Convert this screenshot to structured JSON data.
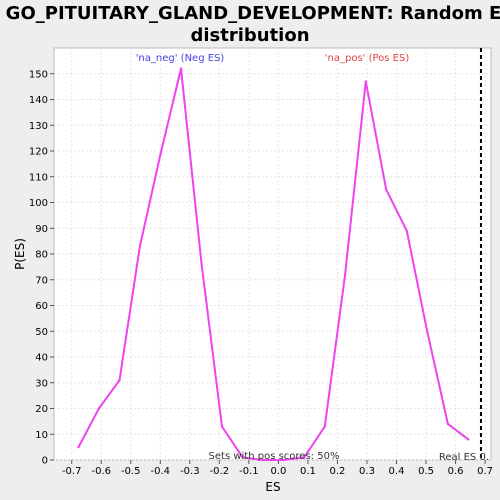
{
  "chart_data": {
    "type": "line",
    "title_lines": [
      "GO_PITUITARY_GLAND_DEVELOPMENT: Random ES",
      "distribution"
    ],
    "xlabel": "ES",
    "ylabel": "P(ES)",
    "xlim": [
      -0.76,
      0.72
    ],
    "ylim": [
      0,
      160
    ],
    "x_ticks": [
      -0.7,
      -0.6,
      -0.5,
      -0.4,
      -0.3,
      -0.2,
      -0.1,
      0.0,
      0.1,
      0.2,
      0.3,
      0.4,
      0.5,
      0.6,
      0.7
    ],
    "x_tick_labels": [
      "-0.7",
      "-0.6",
      "-0.5",
      "-0.4",
      "-0.3",
      "-0.2",
      "-0.1",
      "0.0",
      "0.1",
      "0.2",
      "0.3",
      "0.4",
      "0.5",
      "0.6",
      "0.7"
    ],
    "y_ticks": [
      0,
      10,
      20,
      30,
      40,
      50,
      60,
      70,
      80,
      90,
      100,
      110,
      120,
      130,
      140,
      150
    ],
    "y_tick_labels": [
      "0",
      "10",
      "20",
      "30",
      "40",
      "50",
      "60",
      "70",
      "80",
      "90",
      "100",
      "110",
      "120",
      "130",
      "140",
      "150"
    ],
    "grid": true,
    "series": [
      {
        "color": "#ee44ee",
        "x": [
          -0.677,
          -0.608,
          -0.538,
          -0.469,
          -0.399,
          -0.33,
          -0.26,
          -0.191,
          -0.121,
          -0.052,
          0.018,
          0.087,
          0.157,
          0.226,
          0.296,
          0.365,
          0.435,
          0.504,
          0.574,
          0.643
        ],
        "y": [
          5,
          20,
          31,
          83,
          119,
          152,
          76,
          13,
          1,
          0,
          0,
          1,
          13,
          72,
          147,
          105,
          89,
          50,
          14,
          8
        ]
      }
    ],
    "legend_entries": [
      {
        "text": "'na_neg' (Neg ES)",
        "color": "#4444dd",
        "position": "top-left"
      },
      {
        "text": "'na_pos' (Pos ES)",
        "color": "#dd4444",
        "position": "top-right"
      }
    ],
    "annotations": {
      "pos_scores": "Sets with pos scores: 50%",
      "real_es": "Real ES 0."
    },
    "real_es_line": {
      "x": 0.686,
      "color": "#000000",
      "style": "dashed"
    }
  }
}
